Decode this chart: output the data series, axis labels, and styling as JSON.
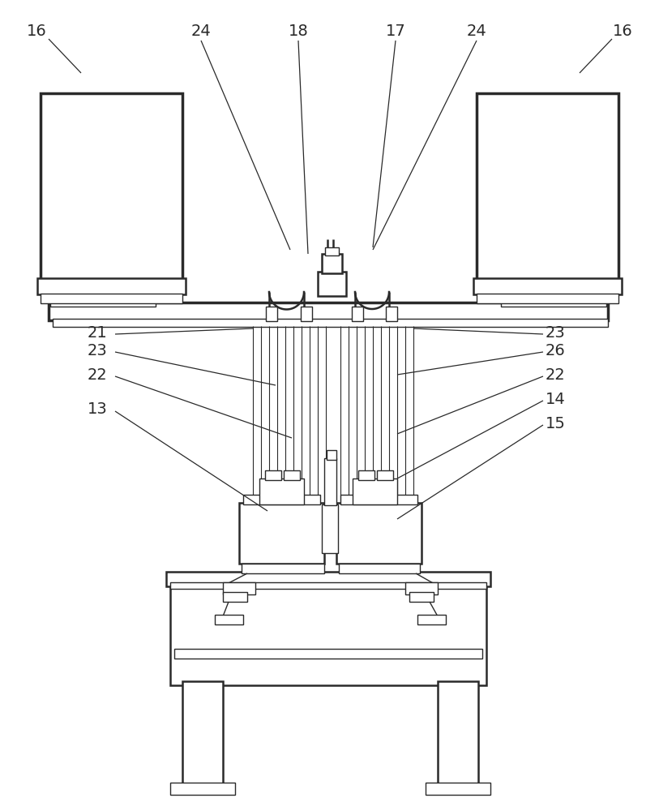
{
  "bg_color": "#ffffff",
  "lc": "#2a2a2a",
  "lw": 1.0,
  "lw2": 1.8,
  "lw3": 2.5
}
